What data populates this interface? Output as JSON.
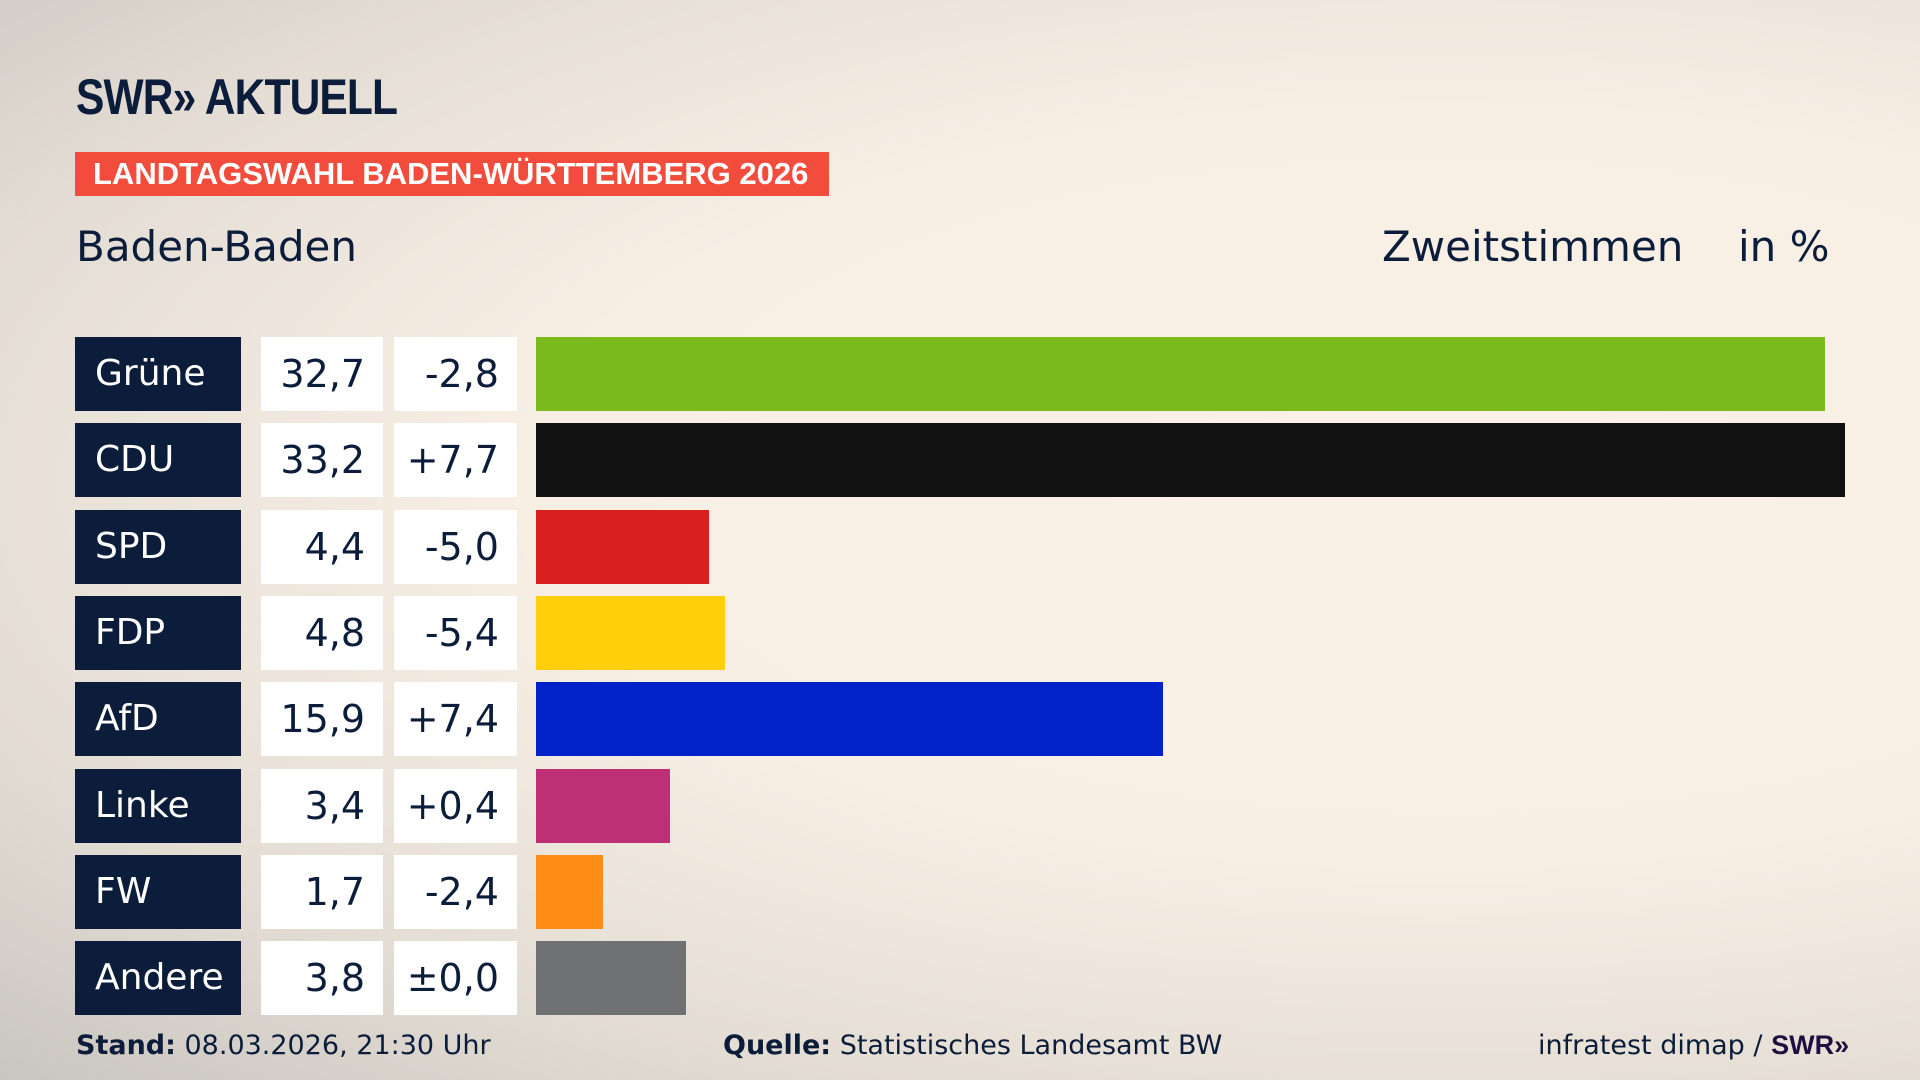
{
  "header": {
    "logo": "SWR» AKTUELL",
    "banner": "LANDTAGSWAHL BADEN-WÜRTTEMBERG 2026",
    "region": "Baden-Baden",
    "metric": "Zweitstimmen",
    "unit": "in %"
  },
  "chart_data": {
    "type": "bar",
    "orientation": "horizontal",
    "categories": [
      "Grüne",
      "CDU",
      "SPD",
      "FDP",
      "AfD",
      "Linke",
      "FW",
      "Andere"
    ],
    "values": [
      32.7,
      33.2,
      4.4,
      4.8,
      15.9,
      3.4,
      1.7,
      3.8
    ],
    "value_labels": [
      "32,7",
      "33,2",
      "4,4",
      "4,8",
      "15,9",
      "3,4",
      "1,7",
      "3,8"
    ],
    "change_labels": [
      "-2,8",
      "+7,7",
      "-5,0",
      "-5,4",
      "+7,4",
      "+0,4",
      "-2,4",
      "±0,0"
    ],
    "changes": [
      -2.8,
      7.7,
      -5.0,
      -5.4,
      7.4,
      0.4,
      -2.4,
      0.0
    ],
    "colors": [
      "#7aba1d",
      "#111111",
      "#d8201e",
      "#fecf0a",
      "#0022c8",
      "#bd3075",
      "#fe8d17",
      "#707172"
    ],
    "grid": false
  },
  "footer": {
    "stand_label": "Stand:",
    "stand_value": " 08.03.2026, 21:30 Uhr",
    "source_label": "Quelle:",
    "source_value": " Statistisches Landesamt BW",
    "credit": "infratest dimap / ",
    "credit_logo": "SWR»"
  }
}
